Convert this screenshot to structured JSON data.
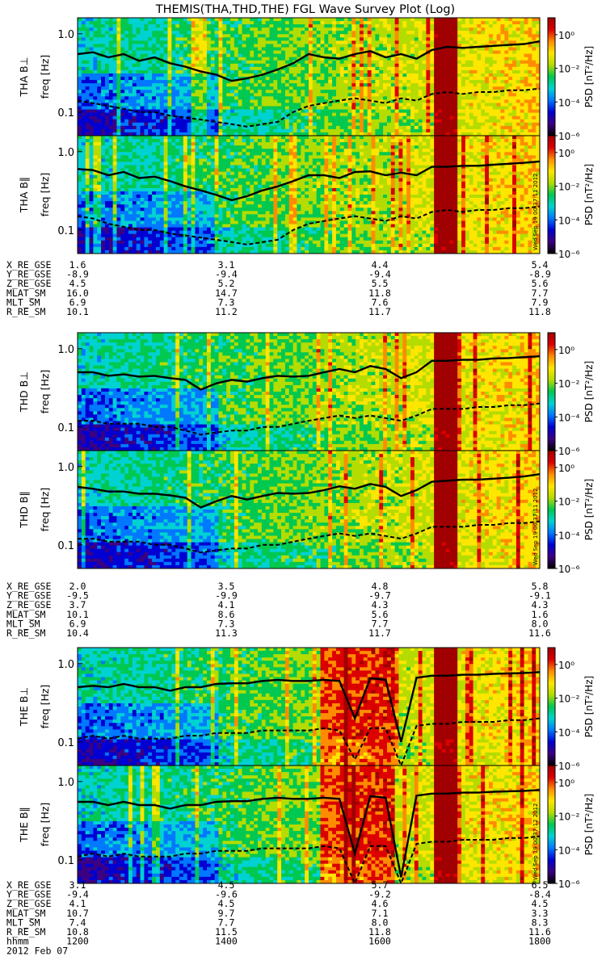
{
  "chart_data": {
    "type": "heatmap",
    "title": "THEMIS(THA,THD,THE) FGL Wave Survey Plot (Log)",
    "ylabel": "freq [Hz]",
    "yscale": "log",
    "ylim": [
      0.05,
      1.6
    ],
    "ytick_values": [
      0.1,
      1.0
    ],
    "ytick_labels": [
      "0.1",
      "1.0"
    ],
    "colorbar": {
      "label": "PSD [nT²/Hz]",
      "scale": "log",
      "range": [
        1e-06,
        10
      ],
      "tick_labels": [
        "10⁰",
        "10⁻²",
        "10⁻⁴",
        "10⁻⁶"
      ],
      "colors": [
        "#000000",
        "#3c0082",
        "#0000d2",
        "#0078ff",
        "#00d2d2",
        "#00c850",
        "#b4dc00",
        "#ffe600",
        "#ff8c00",
        "#dc0000",
        "#a00000"
      ]
    },
    "x_time": {
      "start": 1200,
      "end": 1800
    },
    "line_legend": {
      "solid": "",
      "dashed": ""
    },
    "panels": [
      {
        "probe": "tha",
        "ylabel": "THA B⊥",
        "stamp": "",
        "solid": [
          0.55,
          0.58,
          0.5,
          0.55,
          0.45,
          0.5,
          0.42,
          0.38,
          0.33,
          0.3,
          0.25,
          0.27,
          0.3,
          0.35,
          0.42,
          0.55,
          0.5,
          0.48,
          0.55,
          0.6,
          0.5,
          0.55,
          0.48,
          0.62,
          0.68,
          0.66,
          0.68,
          0.7,
          0.72,
          0.74,
          0.8
        ],
        "dashed": [
          0.14,
          0.13,
          0.12,
          0.11,
          0.1,
          0.1,
          0.09,
          0.085,
          0.08,
          0.075,
          0.07,
          0.065,
          0.07,
          0.075,
          0.1,
          0.12,
          0.13,
          0.14,
          0.15,
          0.14,
          0.13,
          0.15,
          0.14,
          0.17,
          0.18,
          0.17,
          0.18,
          0.18,
          0.19,
          0.19,
          0.2
        ]
      },
      {
        "probe": "tha",
        "ylabel": "THA B∥",
        "stamp": "Wed Sep 19 00:37:11 2012",
        "solid": [
          0.6,
          0.58,
          0.5,
          0.55,
          0.46,
          0.48,
          0.42,
          0.36,
          0.32,
          0.28,
          0.24,
          0.27,
          0.32,
          0.36,
          0.42,
          0.5,
          0.5,
          0.46,
          0.55,
          0.56,
          0.5,
          0.54,
          0.5,
          0.64,
          0.64,
          0.66,
          0.66,
          0.68,
          0.7,
          0.72,
          0.75
        ],
        "dashed": [
          0.15,
          0.14,
          0.12,
          0.11,
          0.1,
          0.1,
          0.09,
          0.085,
          0.08,
          0.075,
          0.07,
          0.065,
          0.07,
          0.075,
          0.1,
          0.12,
          0.13,
          0.14,
          0.15,
          0.14,
          0.13,
          0.15,
          0.14,
          0.17,
          0.18,
          0.17,
          0.18,
          0.18,
          0.19,
          0.19,
          0.2
        ]
      },
      {
        "probe": "thd",
        "ylabel": "THD B⊥",
        "stamp": "",
        "solid": [
          0.5,
          0.5,
          0.45,
          0.47,
          0.44,
          0.45,
          0.42,
          0.4,
          0.3,
          0.36,
          0.4,
          0.38,
          0.42,
          0.45,
          0.44,
          0.45,
          0.5,
          0.55,
          0.5,
          0.6,
          0.55,
          0.42,
          0.5,
          0.7,
          0.7,
          0.72,
          0.72,
          0.75,
          0.76,
          0.78,
          0.8
        ],
        "dashed": [
          0.12,
          0.12,
          0.11,
          0.11,
          0.11,
          0.1,
          0.1,
          0.09,
          0.08,
          0.085,
          0.09,
          0.09,
          0.1,
          0.1,
          0.11,
          0.12,
          0.13,
          0.14,
          0.13,
          0.14,
          0.13,
          0.12,
          0.14,
          0.17,
          0.17,
          0.17,
          0.18,
          0.18,
          0.19,
          0.19,
          0.2
        ]
      },
      {
        "probe": "thd",
        "ylabel": "THD B∥",
        "stamp": "Wed Sep 19 00:37:11 2012",
        "solid": [
          0.55,
          0.52,
          0.48,
          0.48,
          0.45,
          0.45,
          0.43,
          0.4,
          0.3,
          0.36,
          0.42,
          0.38,
          0.42,
          0.46,
          0.45,
          0.46,
          0.5,
          0.56,
          0.52,
          0.6,
          0.55,
          0.42,
          0.5,
          0.64,
          0.66,
          0.68,
          0.68,
          0.7,
          0.72,
          0.75,
          0.8
        ],
        "dashed": [
          0.12,
          0.12,
          0.11,
          0.11,
          0.11,
          0.1,
          0.1,
          0.09,
          0.08,
          0.085,
          0.09,
          0.09,
          0.1,
          0.1,
          0.11,
          0.12,
          0.13,
          0.14,
          0.13,
          0.14,
          0.13,
          0.12,
          0.14,
          0.17,
          0.17,
          0.17,
          0.18,
          0.18,
          0.19,
          0.19,
          0.2
        ]
      },
      {
        "probe": "the",
        "ylabel": "THE B⊥",
        "stamp": "",
        "solid": [
          0.5,
          0.52,
          0.5,
          0.55,
          0.5,
          0.5,
          0.45,
          0.5,
          0.5,
          0.55,
          0.56,
          0.56,
          0.6,
          0.62,
          0.6,
          0.6,
          0.62,
          0.6,
          0.2,
          0.65,
          0.62,
          0.1,
          0.66,
          0.7,
          0.7,
          0.72,
          0.72,
          0.74,
          0.75,
          0.76,
          0.78
        ],
        "dashed": [
          0.11,
          0.12,
          0.11,
          0.12,
          0.11,
          0.11,
          0.11,
          0.12,
          0.12,
          0.13,
          0.13,
          0.13,
          0.14,
          0.14,
          0.14,
          0.14,
          0.15,
          0.14,
          0.06,
          0.15,
          0.15,
          0.05,
          0.16,
          0.17,
          0.17,
          0.18,
          0.18,
          0.18,
          0.19,
          0.19,
          0.2
        ]
      },
      {
        "probe": "the",
        "ylabel": "THE B∥",
        "stamp": "Wed Sep 19 00:37:12 2012",
        "solid": [
          0.55,
          0.55,
          0.5,
          0.55,
          0.5,
          0.5,
          0.45,
          0.5,
          0.5,
          0.55,
          0.56,
          0.56,
          0.6,
          0.62,
          0.6,
          0.6,
          0.62,
          0.6,
          0.12,
          0.65,
          0.62,
          0.06,
          0.66,
          0.7,
          0.7,
          0.72,
          0.72,
          0.74,
          0.75,
          0.76,
          0.78
        ],
        "dashed": [
          0.11,
          0.12,
          0.11,
          0.12,
          0.11,
          0.11,
          0.11,
          0.12,
          0.12,
          0.13,
          0.13,
          0.13,
          0.14,
          0.14,
          0.14,
          0.14,
          0.15,
          0.14,
          0.05,
          0.15,
          0.15,
          0.05,
          0.16,
          0.17,
          0.17,
          0.18,
          0.18,
          0.18,
          0.19,
          0.19,
          0.2
        ]
      }
    ],
    "ephemeris": [
      {
        "probe": "tha",
        "rows": [
          {
            "label": "X_RE_GSE",
            "values": [
              "1.6",
              "3.1",
              "4.4",
              "5.4"
            ]
          },
          {
            "label": "Y_RE_GSE",
            "values": [
              "-8.9",
              "-9.4",
              "-9.4",
              "-8.9"
            ]
          },
          {
            "label": "Z_RE_GSE",
            "values": [
              "4.5",
              "5.2",
              "5.5",
              "5.6"
            ]
          },
          {
            "label": "MLAT_SM",
            "values": [
              "16.0",
              "14.7",
              "11.8",
              "7.7"
            ]
          },
          {
            "label": "MLT_SM",
            "values": [
              "6.9",
              "7.3",
              "7.6",
              "7.9"
            ]
          },
          {
            "label": "R_RE_SM",
            "values": [
              "10.1",
              "11.2",
              "11.7",
              "11.8"
            ]
          }
        ]
      },
      {
        "probe": "thd",
        "rows": [
          {
            "label": "X_RE_GSE",
            "values": [
              "2.0",
              "3.5",
              "4.8",
              "5.8"
            ]
          },
          {
            "label": "Y_RE_GSE",
            "values": [
              "-9.5",
              "-9.9",
              "-9.7",
              "-9.1"
            ]
          },
          {
            "label": "Z_RE_GSE",
            "values": [
              "3.7",
              "4.1",
              "4.3",
              "4.3"
            ]
          },
          {
            "label": "MLAT_SM",
            "values": [
              "10.1",
              "8.6",
              "5.6",
              "1.6"
            ]
          },
          {
            "label": "MLT_SM",
            "values": [
              "6.9",
              "7.3",
              "7.7",
              "8.0"
            ]
          },
          {
            "label": "R_RE_SM",
            "values": [
              "10.4",
              "11.3",
              "11.7",
              "11.6"
            ]
          }
        ]
      },
      {
        "probe": "the",
        "rows": [
          {
            "label": "X_RE_GSE",
            "values": [
              "3.1",
              "4.5",
              "5.7",
              "6.5"
            ]
          },
          {
            "label": "Y_RE_GSE",
            "values": [
              "-9.4",
              "-9.6",
              "-9.2",
              "-8.4"
            ]
          },
          {
            "label": "Z_RE_GSE",
            "values": [
              "4.1",
              "4.5",
              "4.6",
              "4.5"
            ]
          },
          {
            "label": "MLAT_SM",
            "values": [
              "10.7",
              "9.7",
              "7.1",
              "3.3"
            ]
          },
          {
            "label": "MLT_SM",
            "values": [
              "7.4",
              "7.7",
              "8.0",
              "8.3"
            ]
          },
          {
            "label": "R_RE_SM",
            "values": [
              "10.8",
              "11.5",
              "11.8",
              "11.6"
            ]
          }
        ]
      }
    ],
    "time_axis": {
      "label": "hhmm",
      "ticks": [
        "1200",
        "1400",
        "1600",
        "1800"
      ],
      "date": "2012 Feb 07"
    }
  }
}
